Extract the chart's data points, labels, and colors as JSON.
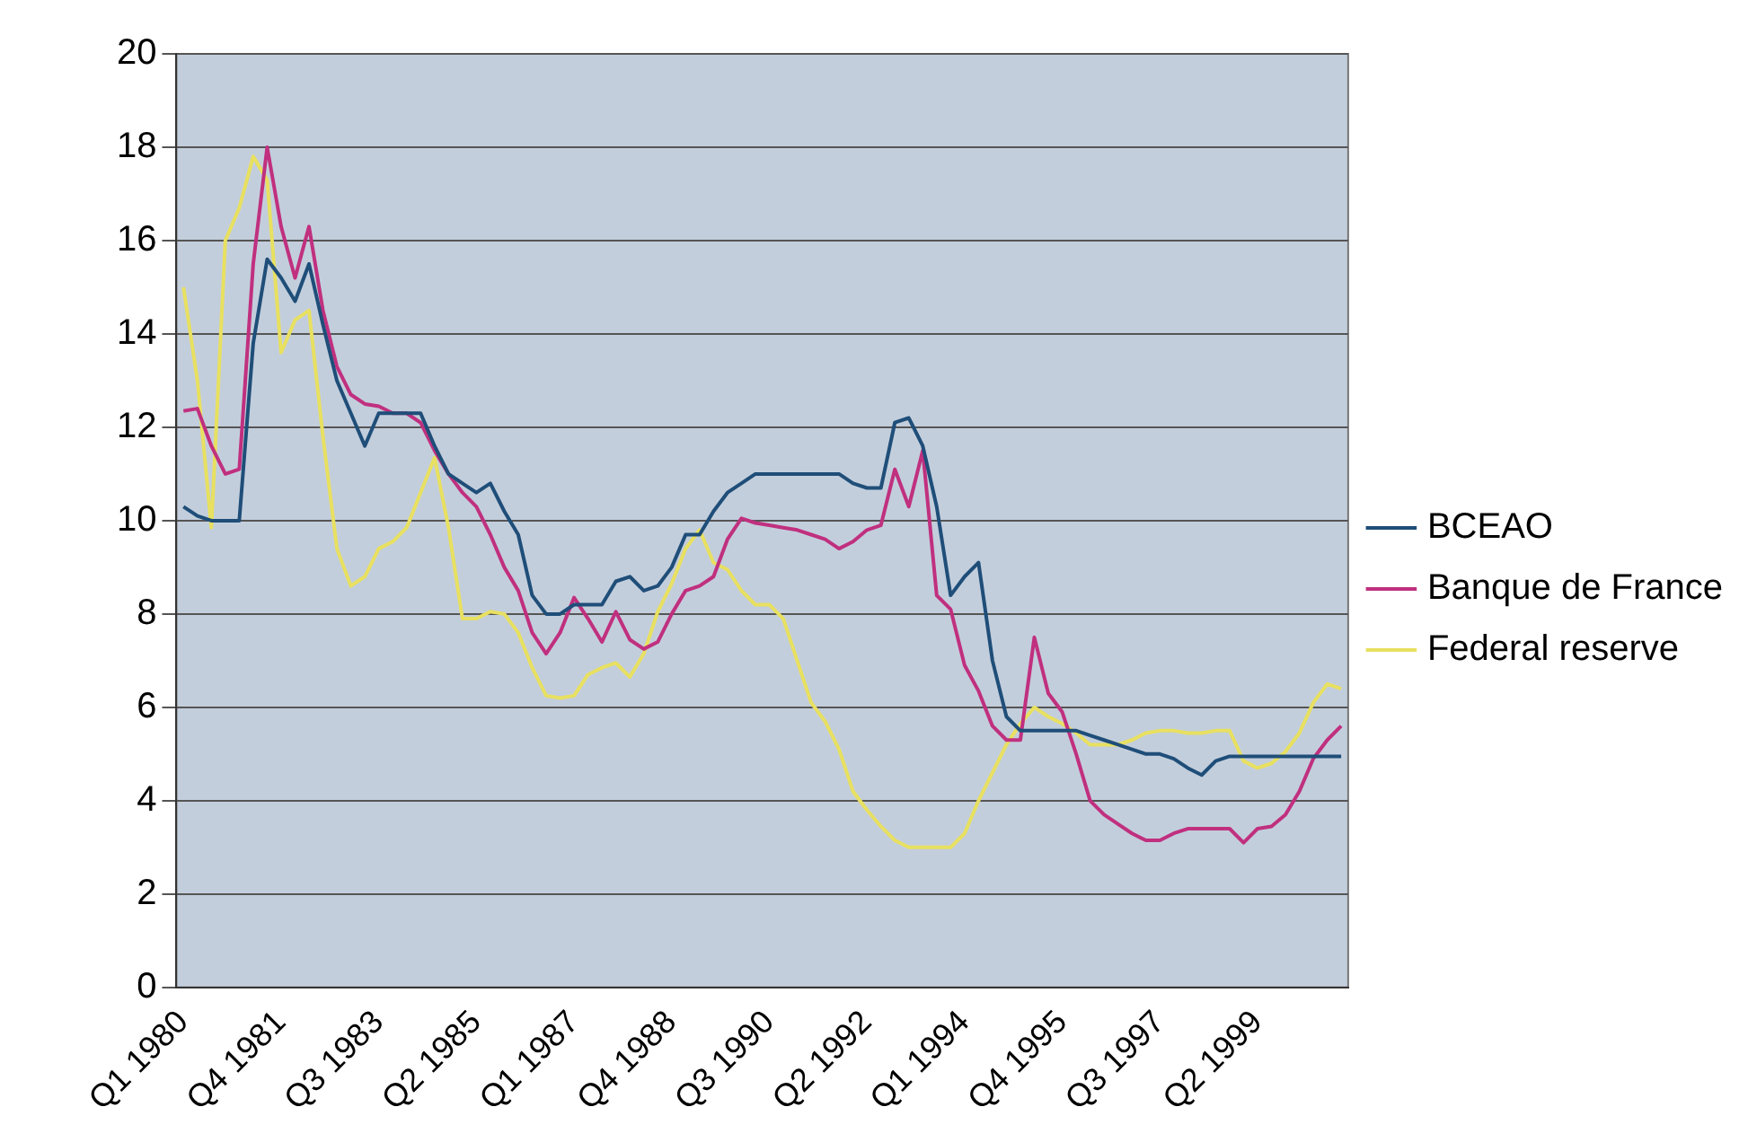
{
  "chart_data": {
    "type": "line",
    "categories": [
      "Q1 1980",
      null,
      null,
      null,
      null,
      null,
      null,
      "Q4 1981",
      null,
      null,
      null,
      null,
      null,
      null,
      "Q3 1983",
      null,
      null,
      null,
      null,
      null,
      null,
      "Q2 1985",
      null,
      null,
      null,
      null,
      null,
      null,
      "Q1 1987",
      null,
      null,
      null,
      null,
      null,
      null,
      "Q4 1988",
      null,
      null,
      null,
      null,
      null,
      null,
      "Q3 1990",
      null,
      null,
      null,
      null,
      null,
      null,
      "Q2 1992",
      null,
      null,
      null,
      null,
      null,
      null,
      "Q1 1994",
      null,
      null,
      null,
      null,
      null,
      null,
      "Q4 1995",
      null,
      null,
      null,
      null,
      null,
      null,
      "Q3 1997",
      null,
      null,
      null,
      null,
      null,
      null,
      "Q2 1999",
      null,
      null,
      null,
      null,
      null,
      null
    ],
    "series": [
      {
        "name": "BCEAO",
        "color": "#1f4e79",
        "values": [
          10.3,
          10.1,
          10.0,
          10.0,
          10.0,
          13.8,
          15.6,
          15.2,
          14.7,
          15.5,
          14.2,
          13.0,
          12.3,
          11.6,
          12.3,
          12.3,
          12.3,
          12.3,
          11.6,
          11.0,
          10.8,
          10.6,
          10.8,
          10.2,
          9.7,
          8.4,
          8.0,
          8.0,
          8.2,
          8.2,
          8.2,
          8.7,
          8.8,
          8.5,
          8.6,
          9.0,
          9.7,
          9.7,
          10.2,
          10.6,
          10.8,
          11.0,
          11.0,
          11.0,
          11.0,
          11.0,
          11.0,
          11.0,
          10.8,
          10.7,
          10.7,
          12.1,
          12.2,
          11.6,
          10.3,
          8.4,
          8.8,
          9.1,
          7.0,
          5.8,
          5.5,
          5.5,
          5.5,
          5.5,
          5.5,
          5.4,
          5.3,
          5.2,
          5.1,
          5.0,
          5.0,
          4.9,
          4.7,
          4.55,
          4.85,
          4.95,
          4.95,
          4.95,
          4.95,
          4.95,
          4.95,
          4.95,
          4.95,
          4.95
        ]
      },
      {
        "name": "Banque de France",
        "color": "#c0307f",
        "values": [
          12.35,
          12.4,
          11.6,
          11.0,
          11.1,
          15.5,
          18.0,
          16.3,
          15.2,
          16.3,
          14.5,
          13.3,
          12.7,
          12.5,
          12.45,
          12.3,
          12.3,
          12.1,
          11.5,
          11.0,
          10.6,
          10.3,
          9.7,
          9.0,
          8.5,
          7.6,
          7.15,
          7.6,
          8.35,
          7.9,
          7.4,
          8.05,
          7.45,
          7.25,
          7.4,
          8.0,
          8.5,
          8.6,
          8.8,
          9.6,
          10.05,
          9.95,
          9.9,
          9.85,
          9.8,
          9.7,
          9.6,
          9.4,
          9.55,
          9.8,
          9.9,
          11.1,
          10.3,
          11.5,
          8.4,
          8.1,
          6.9,
          6.35,
          5.6,
          5.3,
          5.3,
          7.5,
          6.3,
          5.9,
          5.0,
          4.0,
          3.7,
          3.5,
          3.3,
          3.15,
          3.15,
          3.3,
          3.4,
          3.4,
          3.4,
          3.4,
          3.1,
          3.4,
          3.45,
          3.7,
          4.2,
          4.9,
          5.3,
          5.6
        ]
      },
      {
        "name": "Federal reserve",
        "color": "#e8e060",
        "values": [
          15.0,
          13.0,
          9.85,
          16.0,
          16.7,
          17.8,
          17.3,
          13.6,
          14.3,
          14.5,
          11.8,
          9.4,
          8.6,
          8.8,
          9.4,
          9.55,
          9.85,
          10.6,
          11.35,
          9.85,
          7.9,
          7.9,
          8.05,
          8.0,
          7.6,
          6.85,
          6.25,
          6.2,
          6.25,
          6.7,
          6.85,
          6.95,
          6.65,
          7.15,
          8.05,
          8.65,
          9.4,
          9.8,
          9.1,
          8.95,
          8.5,
          8.2,
          8.2,
          7.9,
          7.0,
          6.1,
          5.7,
          5.1,
          4.2,
          3.8,
          3.45,
          3.15,
          3.0,
          3.0,
          3.0,
          3.0,
          3.3,
          4.0,
          4.6,
          5.2,
          5.65,
          6.0,
          5.8,
          5.65,
          5.45,
          5.2,
          5.2,
          5.2,
          5.3,
          5.45,
          5.5,
          5.5,
          5.45,
          5.45,
          5.5,
          5.5,
          4.85,
          4.7,
          4.8,
          5.05,
          5.45,
          6.1,
          6.5,
          6.4
        ]
      }
    ],
    "ylim": [
      0,
      20
    ],
    "yticks": [
      0,
      2,
      4,
      6,
      8,
      10,
      12,
      14,
      16,
      18,
      20
    ],
    "grid": "y",
    "legend": "right",
    "marker": "none",
    "line_style": "solid"
  }
}
